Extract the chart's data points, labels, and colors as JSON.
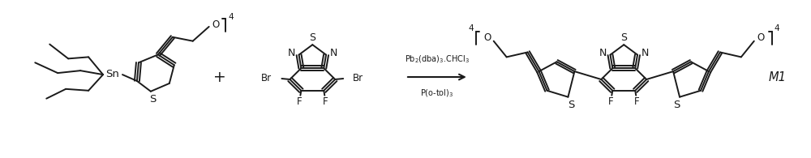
{
  "figure_width": 10.0,
  "figure_height": 1.95,
  "dpi": 100,
  "bg_color": "#ffffff",
  "line_color": "#1a1a1a",
  "line_width": 1.4,
  "font_size": 8.5,
  "reagent_line1": "Pb$_2$(dba)$_3$.CHCl$_3$",
  "reagent_line2": "P(o-tol)$_3$",
  "product_label": "M1"
}
